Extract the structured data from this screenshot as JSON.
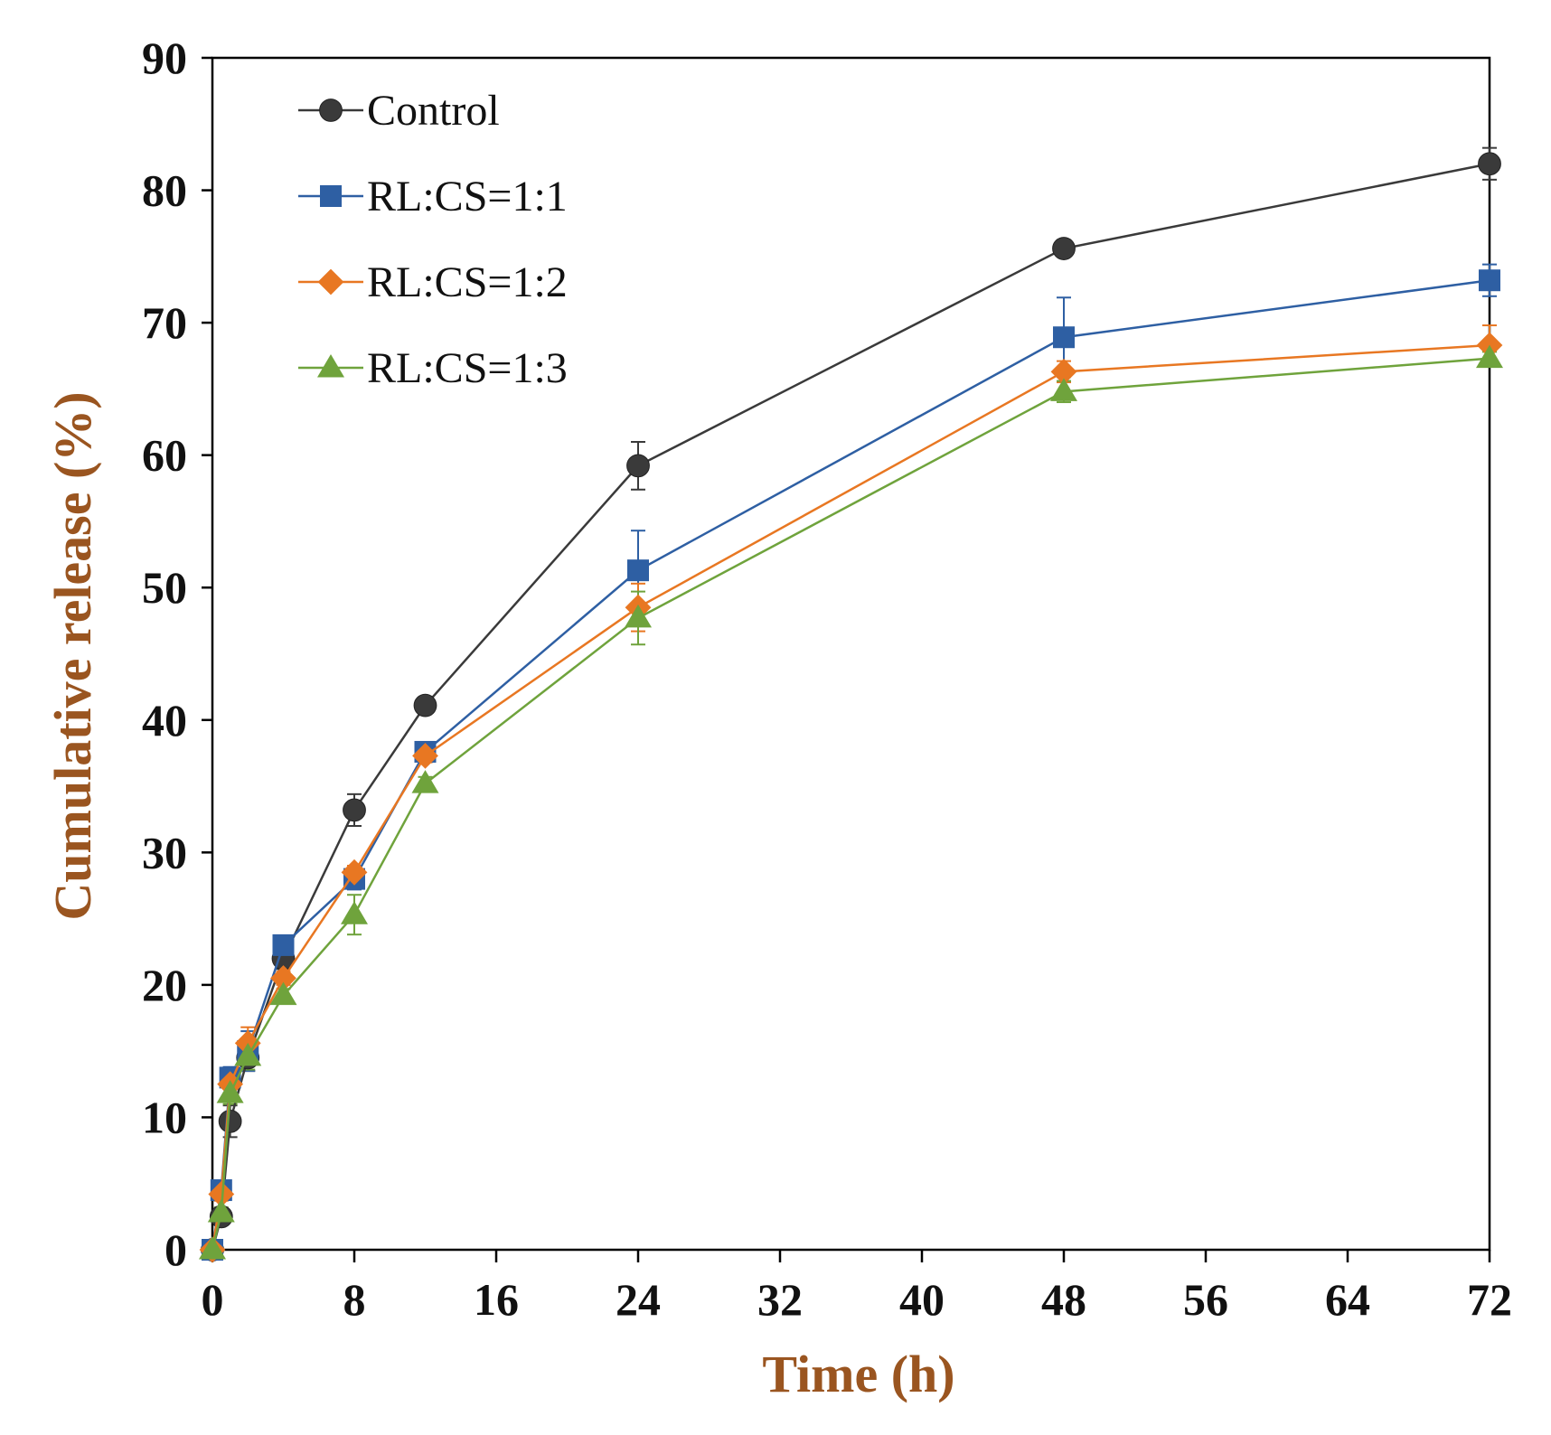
{
  "chart_data": {
    "type": "line",
    "title": "",
    "xlabel": "Time (h)",
    "ylabel": "Cumulative release (%)",
    "label_color": "#9A5520",
    "xlim": [
      0,
      72
    ],
    "ylim": [
      0,
      90
    ],
    "xticks": [
      0,
      8,
      16,
      24,
      32,
      40,
      48,
      56,
      64,
      72
    ],
    "yticks": [
      0,
      10,
      20,
      30,
      40,
      50,
      60,
      70,
      80,
      90
    ],
    "x": [
      0,
      0.5,
      1,
      2,
      4,
      8,
      12,
      24,
      48,
      72
    ],
    "grid": false,
    "legend_position": "top-left",
    "series": [
      {
        "name": "Control",
        "marker": "circle",
        "color": "#3a3a3a",
        "values": [
          0,
          2.5,
          9.7,
          14.5,
          22.0,
          33.2,
          41.1,
          59.2,
          75.6,
          82.0
        ],
        "errors": [
          0,
          0.5,
          1.2,
          1.0,
          0.8,
          1.2,
          0.5,
          1.8,
          0.5,
          1.2
        ]
      },
      {
        "name": "RL:CS=1:1",
        "marker": "square",
        "color": "#2E5FA3",
        "values": [
          0,
          4.5,
          13.0,
          15.0,
          23.0,
          28.0,
          37.6,
          51.3,
          68.9,
          73.2
        ],
        "errors": [
          0,
          0.5,
          0.8,
          1.5,
          0.5,
          0.8,
          0.5,
          3.0,
          3.0,
          1.2
        ]
      },
      {
        "name": "RL:CS=1:2",
        "marker": "diamond",
        "color": "#E87722",
        "values": [
          0,
          4.2,
          12.5,
          15.6,
          20.5,
          28.5,
          37.3,
          48.5,
          66.3,
          68.3
        ],
        "errors": [
          0,
          0.5,
          0.8,
          1.2,
          0.5,
          0.5,
          0.5,
          1.8,
          0.8,
          1.5
        ]
      },
      {
        "name": "RL:CS=1:3",
        "marker": "triangle",
        "color": "#6FA33C",
        "values": [
          0,
          2.8,
          11.8,
          14.6,
          19.2,
          25.3,
          35.2,
          47.7,
          64.8,
          67.3
        ],
        "errors": [
          0,
          0.4,
          0.8,
          1.0,
          0.5,
          1.5,
          0.5,
          2.0,
          0.8,
          0.5
        ]
      }
    ]
  }
}
